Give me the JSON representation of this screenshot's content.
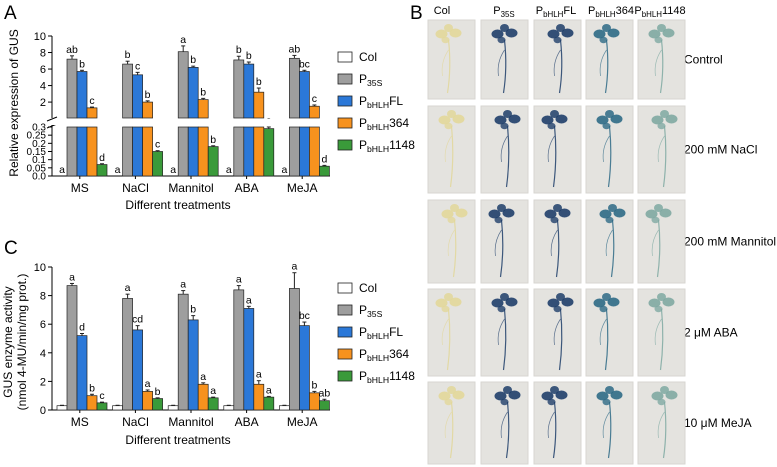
{
  "colors": {
    "Col": "#ffffff",
    "P35S": "#9e9e9e",
    "FL": "#2b78d8",
    "364": "#f7921e",
    "1148": "#3a9a3a",
    "plate": "#e4e3df",
    "plate_dark": "#d7d6d1"
  },
  "panel_labels": {
    "a": "A",
    "b": "B",
    "c": "C"
  },
  "legend": [
    {
      "key": "Col",
      "main": "Col",
      "sub": "",
      "suffix": ""
    },
    {
      "key": "P35S",
      "main": "P",
      "sub": "35S",
      "suffix": ""
    },
    {
      "key": "FL",
      "main": "P",
      "sub": "bHLH",
      "suffix": "FL"
    },
    {
      "key": "364",
      "main": "P",
      "sub": "bHLH",
      "suffix": "364"
    },
    {
      "key": "1148",
      "main": "P",
      "sub": "bHLH",
      "suffix": "1148"
    }
  ],
  "chart_data": [
    {
      "id": "A",
      "type": "bar",
      "xlabel": "Different treatments",
      "ylabel": "Relative expression of GUS",
      "categories": [
        "MS",
        "NaCl",
        "Mannitol",
        "ABA",
        "MeJA"
      ],
      "y_axis": "broken",
      "upper_ticks": [
        "2",
        "4",
        "6",
        "8",
        "10"
      ],
      "lower_ticks": [
        "0.0",
        "0.05",
        "0.1",
        "0.15",
        "0.2",
        "0.25",
        "0.3"
      ],
      "ylim_lower": [
        0,
        0.3
      ],
      "ylim_upper": [
        0.8,
        10
      ],
      "series": [
        {
          "key": "Col",
          "values": [
            0.0,
            0.0,
            0.0,
            0.0,
            0.0
          ],
          "errors": [
            0,
            0,
            0,
            0,
            0
          ],
          "letters": [
            "a",
            "a",
            "a",
            "a",
            "a"
          ]
        },
        {
          "key": "P35S",
          "values": [
            7.2,
            6.6,
            8.1,
            7.1,
            7.3
          ],
          "errors": [
            0.4,
            0.35,
            0.7,
            0.45,
            0.35
          ],
          "letters": [
            "ab",
            "b",
            "a",
            "b",
            "ab"
          ]
        },
        {
          "key": "FL",
          "values": [
            5.7,
            5.3,
            6.2,
            6.6,
            5.7
          ],
          "errors": [
            0.15,
            0.3,
            0.15,
            0.25,
            0.15
          ],
          "letters": [
            "b",
            "c",
            "b",
            "b",
            "bc"
          ]
        },
        {
          "key": "364",
          "values": [
            1.3,
            2.0,
            2.3,
            3.2,
            1.5
          ],
          "errors": [
            0.1,
            0.15,
            0.15,
            0.5,
            0.15
          ],
          "letters": [
            "c",
            "b",
            "b",
            "b",
            "c"
          ]
        },
        {
          "key": "1148",
          "values": [
            0.07,
            0.15,
            0.18,
            0.29,
            0.06
          ],
          "errors": [
            0.005,
            0.005,
            0.005,
            0.01,
            0.005
          ],
          "letters": [
            "d",
            "c",
            "b",
            "a",
            "d"
          ]
        }
      ]
    },
    {
      "id": "C",
      "type": "bar",
      "xlabel": "Different treatments",
      "ylabel": [
        "GUS enzyme activity",
        "(nmol 4-MU/min/mg prot.)"
      ],
      "categories": [
        "MS",
        "NaCl",
        "Mannitol",
        "ABA",
        "MeJA"
      ],
      "yticks": [
        "0",
        "2",
        "4",
        "6",
        "8",
        "10"
      ],
      "ylim": [
        0,
        10
      ],
      "series": [
        {
          "key": "Col",
          "values": [
            0.3,
            0.3,
            0.3,
            0.3,
            0.3
          ],
          "errors": [
            0.03,
            0.03,
            0.03,
            0.03,
            0.03
          ],
          "letters": [
            "",
            "",
            "",
            "",
            ""
          ]
        },
        {
          "key": "P35S",
          "values": [
            8.7,
            7.8,
            8.1,
            8.4,
            8.5
          ],
          "errors": [
            0.15,
            0.3,
            0.25,
            0.3,
            1.1
          ],
          "letters": [
            "a",
            "a",
            "a",
            "a",
            "a"
          ]
        },
        {
          "key": "FL",
          "values": [
            5.2,
            5.6,
            6.3,
            7.1,
            5.9
          ],
          "errors": [
            0.15,
            0.3,
            0.3,
            0.15,
            0.25
          ],
          "letters": [
            "d",
            "cd",
            "b",
            "a",
            "bc"
          ]
        },
        {
          "key": "364",
          "values": [
            1.0,
            1.3,
            1.8,
            1.8,
            1.2
          ],
          "errors": [
            0.1,
            0.1,
            0.1,
            0.25,
            0.1
          ],
          "letters": [
            "b",
            "a",
            "a",
            "a",
            "b"
          ]
        },
        {
          "key": "1148",
          "values": [
            0.5,
            0.8,
            0.85,
            0.9,
            0.65
          ],
          "errors": [
            0.05,
            0.05,
            0.05,
            0.05,
            0.1
          ],
          "letters": [
            "c",
            "b",
            "a",
            "a",
            "ab"
          ]
        }
      ]
    }
  ],
  "panel_b": {
    "columns": [
      {
        "main": "Col",
        "sub": "",
        "suffix": ""
      },
      {
        "main": "P",
        "sub": "35S",
        "suffix": ""
      },
      {
        "main": "P",
        "sub": "bHLH",
        "suffix": "FL"
      },
      {
        "main": "P",
        "sub": "bHLH",
        "suffix": "364"
      },
      {
        "main": "P",
        "sub": "bHLH",
        "suffix": "1148"
      }
    ],
    "rows": [
      "Control",
      "200 mM NaCl",
      "200 mM Mannitol",
      "2 μM ABA",
      "10 μM MeJA"
    ],
    "stain": [
      "none",
      "strong",
      "strong",
      "medium",
      "light"
    ]
  }
}
